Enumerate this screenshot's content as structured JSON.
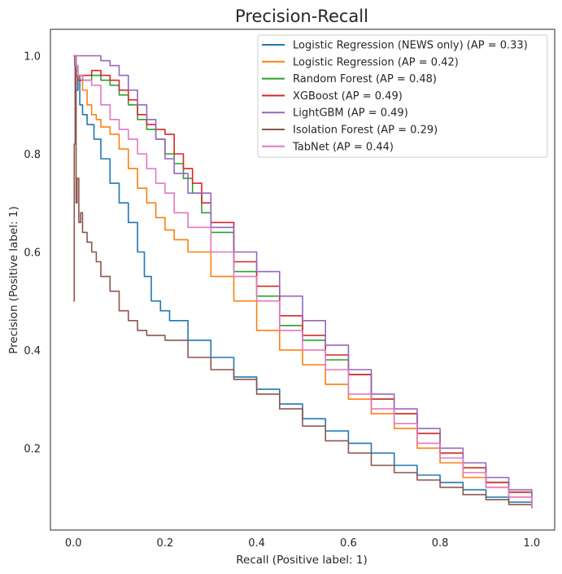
{
  "chart_data": {
    "type": "line",
    "title": "Precision-Recall",
    "xlabel": "Recall (Positive label: 1)",
    "ylabel": "Precision (Positive label: 1)",
    "xlim": [
      -0.05,
      1.05
    ],
    "ylim": [
      0.033,
      1.054
    ],
    "xticks": [
      0.0,
      0.2,
      0.4,
      0.6,
      0.8,
      1.0
    ],
    "yticks": [
      0.2,
      0.4,
      0.6,
      0.8,
      1.0
    ],
    "grid": false,
    "legend_position": "top-right",
    "series": [
      {
        "name": "Logistic Regression (NEWS only) (AP = 0.33)",
        "color": "#1f77b4",
        "x": [
          0.0,
          0.003,
          0.006,
          0.01,
          0.014,
          0.02,
          0.03,
          0.045,
          0.06,
          0.08,
          0.1,
          0.12,
          0.14,
          0.155,
          0.17,
          0.19,
          0.21,
          0.25,
          0.3,
          0.35,
          0.4,
          0.45,
          0.5,
          0.55,
          0.6,
          0.65,
          0.7,
          0.75,
          0.8,
          0.85,
          0.9,
          0.95,
          1.0
        ],
        "y": [
          1.0,
          0.98,
          0.93,
          0.96,
          0.9,
          0.88,
          0.86,
          0.83,
          0.79,
          0.74,
          0.7,
          0.66,
          0.6,
          0.55,
          0.5,
          0.48,
          0.46,
          0.42,
          0.385,
          0.345,
          0.32,
          0.29,
          0.26,
          0.235,
          0.21,
          0.19,
          0.165,
          0.145,
          0.13,
          0.115,
          0.1,
          0.09,
          0.077
        ]
      },
      {
        "name": "Logistic Regression (AP = 0.42)",
        "color": "#ff7f0e",
        "x": [
          0.0,
          0.005,
          0.01,
          0.02,
          0.03,
          0.04,
          0.05,
          0.06,
          0.08,
          0.1,
          0.12,
          0.14,
          0.16,
          0.18,
          0.2,
          0.22,
          0.25,
          0.3,
          0.35,
          0.4,
          0.45,
          0.5,
          0.55,
          0.6,
          0.65,
          0.7,
          0.75,
          0.8,
          0.85,
          0.9,
          0.95,
          1.0
        ],
        "y": [
          1.0,
          0.98,
          0.96,
          0.93,
          0.9,
          0.88,
          0.87,
          0.855,
          0.84,
          0.81,
          0.77,
          0.73,
          0.7,
          0.67,
          0.645,
          0.625,
          0.6,
          0.55,
          0.5,
          0.44,
          0.4,
          0.37,
          0.33,
          0.3,
          0.27,
          0.24,
          0.2,
          0.17,
          0.14,
          0.12,
          0.1,
          0.078
        ]
      },
      {
        "name": "Random Forest (AP = 0.48)",
        "color": "#2ca02c",
        "x": [
          0.0,
          0.005,
          0.01,
          0.02,
          0.04,
          0.06,
          0.08,
          0.1,
          0.12,
          0.14,
          0.16,
          0.18,
          0.2,
          0.22,
          0.24,
          0.26,
          0.28,
          0.3,
          0.35,
          0.4,
          0.45,
          0.5,
          0.55,
          0.6,
          0.65,
          0.7,
          0.75,
          0.8,
          0.85,
          0.9,
          0.95,
          1.0
        ],
        "y": [
          1.0,
          0.97,
          0.96,
          0.95,
          0.96,
          0.95,
          0.94,
          0.92,
          0.9,
          0.87,
          0.85,
          0.83,
          0.8,
          0.78,
          0.75,
          0.72,
          0.68,
          0.64,
          0.56,
          0.51,
          0.45,
          0.42,
          0.38,
          0.35,
          0.3,
          0.27,
          0.23,
          0.19,
          0.16,
          0.13,
          0.11,
          0.08
        ]
      },
      {
        "name": "XGBoost (AP = 0.49)",
        "color": "#d62728",
        "x": [
          0.0,
          0.005,
          0.01,
          0.02,
          0.04,
          0.06,
          0.08,
          0.1,
          0.12,
          0.14,
          0.16,
          0.18,
          0.2,
          0.22,
          0.24,
          0.26,
          0.28,
          0.3,
          0.35,
          0.4,
          0.45,
          0.5,
          0.55,
          0.6,
          0.65,
          0.7,
          0.75,
          0.8,
          0.85,
          0.9,
          0.95,
          1.0
        ],
        "y": [
          1.0,
          0.96,
          0.95,
          0.96,
          0.97,
          0.96,
          0.95,
          0.93,
          0.91,
          0.88,
          0.86,
          0.85,
          0.84,
          0.8,
          0.77,
          0.74,
          0.7,
          0.66,
          0.58,
          0.53,
          0.47,
          0.43,
          0.39,
          0.35,
          0.3,
          0.27,
          0.23,
          0.19,
          0.16,
          0.13,
          0.11,
          0.08
        ]
      },
      {
        "name": "LightGBM (AP = 0.49)",
        "color": "#9467bd",
        "x": [
          0.0,
          0.005,
          0.01,
          0.02,
          0.03,
          0.04,
          0.05,
          0.06,
          0.08,
          0.1,
          0.12,
          0.14,
          0.16,
          0.18,
          0.2,
          0.22,
          0.25,
          0.3,
          0.35,
          0.4,
          0.45,
          0.5,
          0.55,
          0.6,
          0.65,
          0.7,
          0.75,
          0.8,
          0.85,
          0.9,
          0.95,
          1.0
        ],
        "y": [
          1.0,
          1.0,
          1.0,
          1.0,
          1.0,
          1.0,
          1.0,
          0.99,
          0.98,
          0.96,
          0.93,
          0.9,
          0.87,
          0.83,
          0.79,
          0.76,
          0.72,
          0.65,
          0.6,
          0.56,
          0.51,
          0.46,
          0.41,
          0.36,
          0.31,
          0.28,
          0.24,
          0.2,
          0.17,
          0.14,
          0.115,
          0.082
        ]
      },
      {
        "name": "Isolation Forest (AP = 0.29)",
        "color": "#8c564b",
        "x": [
          0.0,
          0.002,
          0.004,
          0.006,
          0.008,
          0.012,
          0.016,
          0.02,
          0.03,
          0.04,
          0.05,
          0.06,
          0.08,
          0.1,
          0.12,
          0.14,
          0.16,
          0.2,
          0.25,
          0.3,
          0.35,
          0.4,
          0.45,
          0.5,
          0.55,
          0.6,
          0.65,
          0.7,
          0.75,
          0.8,
          0.85,
          0.9,
          0.95,
          1.0
        ],
        "y": [
          0.5,
          0.82,
          1.0,
          0.7,
          0.75,
          0.66,
          0.68,
          0.64,
          0.62,
          0.6,
          0.58,
          0.55,
          0.52,
          0.48,
          0.46,
          0.44,
          0.43,
          0.42,
          0.385,
          0.36,
          0.34,
          0.31,
          0.28,
          0.245,
          0.215,
          0.19,
          0.165,
          0.15,
          0.135,
          0.12,
          0.105,
          0.095,
          0.085,
          0.077
        ]
      },
      {
        "name": "TabNet (AP = 0.44)",
        "color": "#e377c2",
        "x": [
          0.0,
          0.005,
          0.01,
          0.02,
          0.03,
          0.04,
          0.06,
          0.08,
          0.1,
          0.12,
          0.14,
          0.16,
          0.18,
          0.2,
          0.22,
          0.25,
          0.3,
          0.35,
          0.4,
          0.45,
          0.5,
          0.55,
          0.6,
          0.65,
          0.7,
          0.75,
          0.8,
          0.85,
          0.9,
          0.95,
          1.0
        ],
        "y": [
          1.0,
          0.98,
          0.96,
          0.95,
          0.95,
          0.94,
          0.9,
          0.87,
          0.85,
          0.83,
          0.8,
          0.77,
          0.74,
          0.72,
          0.68,
          0.65,
          0.6,
          0.55,
          0.5,
          0.44,
          0.4,
          0.36,
          0.31,
          0.28,
          0.25,
          0.21,
          0.18,
          0.15,
          0.12,
          0.1,
          0.078
        ]
      }
    ]
  }
}
